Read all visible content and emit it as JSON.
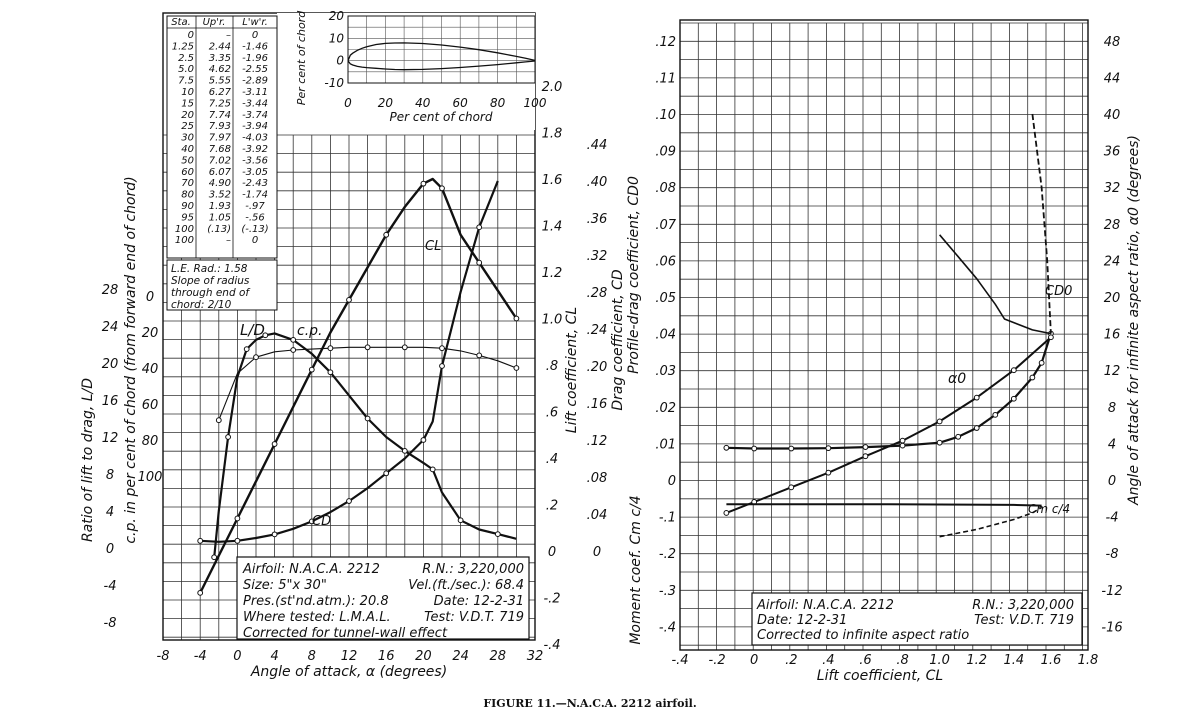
{
  "caption": "FIGURE 11.—N.A.C.A. 2212 airfoil.",
  "airfoil_table": {
    "headers": [
      "Sta.",
      "Up'r.",
      "L'w'r."
    ],
    "rows": [
      [
        "0",
        "–",
        "0"
      ],
      [
        "1.25",
        "2.44",
        "-1.46"
      ],
      [
        "2.5",
        "3.35",
        "-1.96"
      ],
      [
        "5.0",
        "4.62",
        "-2.55"
      ],
      [
        "7.5",
        "5.55",
        "-2.89"
      ],
      [
        "10",
        "6.27",
        "-3.11"
      ],
      [
        "15",
        "7.25",
        "-3.44"
      ],
      [
        "20",
        "7.74",
        "-3.74"
      ],
      [
        "25",
        "7.93",
        "-3.94"
      ],
      [
        "30",
        "7.97",
        "-4.03"
      ],
      [
        "40",
        "7.68",
        "-3.92"
      ],
      [
        "50",
        "7.02",
        "-3.56"
      ],
      [
        "60",
        "6.07",
        "-3.05"
      ],
      [
        "70",
        "4.90",
        "-2.43"
      ],
      [
        "80",
        "3.52",
        "-1.74"
      ],
      [
        "90",
        "1.93",
        "-.97"
      ],
      [
        "95",
        "1.05",
        "-.56"
      ],
      [
        "100",
        "(.13)",
        "(-.13)"
      ],
      [
        "100",
        "–",
        "0"
      ]
    ],
    "note": [
      "L.E. Rad.: 1.58",
      "Slope of radius",
      "through end of",
      "chord: 2/10"
    ]
  },
  "chart_data": [
    {
      "type": "line",
      "id": "profile",
      "xlabel": "Per cent of chord",
      "ylabel": "Per cent of chord",
      "xticks": [
        "0",
        "20",
        "40",
        "60",
        "80",
        "100"
      ],
      "yticks": [
        "20",
        "10",
        "0",
        "-10"
      ],
      "xlim": [
        0,
        100
      ],
      "ylim": [
        -10,
        20
      ],
      "series": [
        {
          "x": [
            0,
            1.25,
            2.5,
            5,
            7.5,
            10,
            15,
            20,
            25,
            30,
            40,
            50,
            60,
            70,
            80,
            90,
            95,
            100
          ],
          "y": [
            0,
            2.44,
            3.35,
            4.62,
            5.55,
            6.27,
            7.25,
            7.74,
            7.93,
            7.97,
            7.68,
            7.02,
            6.07,
            4.9,
            3.52,
            1.93,
            1.05,
            0.13
          ]
        },
        {
          "x": [
            0,
            1.25,
            2.5,
            5,
            7.5,
            10,
            15,
            20,
            25,
            30,
            40,
            50,
            60,
            70,
            80,
            90,
            95,
            100
          ],
          "y": [
            0,
            -1.46,
            -1.96,
            -2.55,
            -2.89,
            -3.11,
            -3.44,
            -3.74,
            -3.94,
            -4.03,
            -3.92,
            -3.56,
            -3.05,
            -2.43,
            -1.74,
            -0.97,
            -0.56,
            -0.13
          ]
        }
      ]
    },
    {
      "type": "line",
      "id": "left",
      "xlabel": "Angle of attack, α (degrees)",
      "xticks": [
        "-8",
        "-4",
        "0",
        "4",
        "8",
        "12",
        "16",
        "20",
        "24",
        "28",
        "32"
      ],
      "xlim": [
        -8,
        32
      ],
      "axis_labels": {
        "ld": "Ratio of lift to drag, L/D",
        "cp": "c.p. in per cent of chord (from forward end of chord)",
        "cl": "Lift coefficient, CL",
        "cd": "Drag coefficient, CD"
      },
      "ld_ticks": [
        "28",
        "24",
        "20",
        "16",
        "12",
        "8",
        "4",
        "0",
        "-4",
        "-8"
      ],
      "cp_ticks": [
        "0",
        "20",
        "40",
        "60",
        "80",
        "100"
      ],
      "cl_ticks": [
        "2.0",
        "1.8",
        "1.6",
        "1.4",
        "1.2",
        "1.0",
        ".8",
        ".6",
        ".4",
        ".2",
        "0",
        "-.2",
        "-.4"
      ],
      "cd_ticks": [
        ".44",
        ".40",
        ".36",
        ".32",
        ".28",
        ".24",
        ".20",
        ".16",
        ".12",
        ".08",
        ".04",
        "0"
      ],
      "series": [
        {
          "name": "CL",
          "x": [
            -4,
            -2,
            0,
            2,
            4,
            6,
            8,
            10,
            12,
            14,
            16,
            18,
            20,
            21,
            22,
            24,
            26,
            28,
            30
          ],
          "y": [
            -0.18,
            -0.02,
            0.14,
            0.3,
            0.46,
            0.62,
            0.78,
            0.94,
            1.08,
            1.22,
            1.36,
            1.48,
            1.58,
            1.6,
            1.56,
            1.36,
            1.24,
            1.12,
            1.0
          ]
        },
        {
          "name": "CD",
          "x": [
            -4,
            -2,
            0,
            2,
            4,
            6,
            8,
            10,
            12,
            14,
            16,
            18,
            20,
            21,
            22,
            24,
            26,
            28
          ],
          "y": [
            0.011,
            0.01,
            0.011,
            0.014,
            0.018,
            0.024,
            0.032,
            0.042,
            0.054,
            0.068,
            0.084,
            0.1,
            0.12,
            0.14,
            0.2,
            0.28,
            0.35,
            0.4
          ]
        },
        {
          "name": "L/D",
          "x": [
            -2.5,
            -2,
            -1,
            0,
            1,
            2,
            3,
            4,
            6,
            8,
            10,
            12,
            14,
            16,
            18,
            20,
            21,
            22,
            24,
            26,
            28,
            30
          ],
          "y": [
            -1,
            4,
            12,
            18.5,
            21.5,
            22.5,
            23,
            23.2,
            22.5,
            21,
            19,
            16.5,
            14,
            12,
            10.5,
            9.2,
            8.5,
            6,
            3,
            2,
            1.5,
            1
          ]
        },
        {
          "name": "c.p.",
          "x": [
            -2,
            0,
            2,
            4,
            6,
            8,
            10,
            12,
            14,
            16,
            18,
            20,
            22,
            24,
            26,
            28,
            30
          ],
          "y": [
            69,
            43,
            34,
            31,
            30,
            29.5,
            29,
            28.5,
            28.5,
            28.5,
            28.5,
            28.5,
            29,
            30.5,
            33,
            36,
            40
          ]
        }
      ],
      "labels": {
        "cl": "CL",
        "cd": "CD",
        "ld": "L/D",
        "cp": "c.p."
      },
      "info": [
        [
          "Airfoil: N.A.C.A. 2212",
          "R.N.: 3,220,000"
        ],
        [
          "Size: 5\"x 30\"",
          "Vel.(ft./sec.): 68.4"
        ],
        [
          "Pres.(st'nd.atm.): 20.8",
          "Date: 12-2-31"
        ],
        [
          "Where tested: L.M.A.L.",
          "Test: V.D.T. 719"
        ],
        [
          "Corrected for tunnel-wall effect",
          ""
        ]
      ]
    },
    {
      "type": "line",
      "id": "right",
      "xlabel": "Lift coefficient, CL",
      "xticks": [
        "-.4",
        "-.2",
        "0",
        ".2",
        ".4",
        ".6",
        ".8",
        "1.0",
        "1.2",
        "1.4",
        "1.6",
        "1.8"
      ],
      "xlim": [
        -0.4,
        1.8
      ],
      "axis_labels": {
        "cd0": "Profile-drag coefficient, CD0",
        "alpha0": "Angle of attack for infinite aspect ratio, α0 (degrees)",
        "cm": "Moment coef. Cm c/4"
      },
      "cd0_ticks": [
        ".12",
        ".11",
        ".10",
        ".09",
        ".08",
        ".07",
        ".06",
        ".05",
        ".04",
        ".03",
        ".02",
        ".01",
        "0"
      ],
      "cm_ticks": [
        "-.1",
        "-.2",
        "-.3",
        "-.4"
      ],
      "alpha_ticks": [
        "48",
        "44",
        "40",
        "36",
        "32",
        "28",
        "24",
        "20",
        "16",
        "12",
        "8",
        "4",
        "0",
        "-4",
        "-8",
        "-12",
        "-16"
      ],
      "series": [
        {
          "name": "CD0",
          "x": [
            -0.15,
            0,
            0.2,
            0.4,
            0.6,
            0.8,
            1.0,
            1.1,
            1.2,
            1.3,
            1.4,
            1.5,
            1.55,
            1.6
          ],
          "y": [
            0.0088,
            0.0086,
            0.0086,
            0.0087,
            0.009,
            0.0094,
            0.0102,
            0.0118,
            0.0142,
            0.0178,
            0.0222,
            0.028,
            0.032,
            0.04
          ]
        },
        {
          "name": "α0",
          "x": [
            -0.15,
            0,
            0.2,
            0.4,
            0.6,
            0.8,
            1.0,
            1.2,
            1.4,
            1.6
          ],
          "y": [
            -3.6,
            -2.4,
            -0.8,
            0.8,
            2.6,
            4.3,
            6.4,
            9,
            12,
            15.6
          ]
        },
        {
          "name": "Cm c/4",
          "x": [
            -0.15,
            0.2,
            0.6,
            1.0,
            1.4,
            1.55
          ],
          "y": [
            -0.066,
            -0.066,
            -0.066,
            -0.067,
            -0.068,
            -0.07
          ]
        },
        {
          "name": "CD0 high",
          "x": [
            1.0,
            1.1,
            1.2,
            1.3,
            1.35,
            1.4,
            1.5,
            1.6
          ],
          "y": [
            0.067,
            0.061,
            0.055,
            0.048,
            0.044,
            0.043,
            0.041,
            0.04
          ]
        },
        {
          "name": "Cm stall",
          "x": [
            1.0,
            1.2,
            1.4,
            1.5,
            1.55
          ],
          "y": [
            -0.155,
            -0.135,
            -0.108,
            -0.09,
            -0.075
          ]
        },
        {
          "name": "α0 stall",
          "x": [
            1.5,
            1.55,
            1.58,
            1.6
          ],
          "y": [
            40,
            32,
            24,
            16
          ]
        }
      ],
      "labels": {
        "cd0": "CD0",
        "alpha0": "α0",
        "cm": "Cm c/4"
      },
      "info": [
        [
          "Airfoil: N.A.C.A. 2212",
          "R.N.: 3,220,000"
        ],
        [
          "Date: 12-2-31",
          "Test: V.D.T. 719"
        ],
        [
          "Corrected to infinite aspect ratio",
          ""
        ]
      ]
    }
  ]
}
